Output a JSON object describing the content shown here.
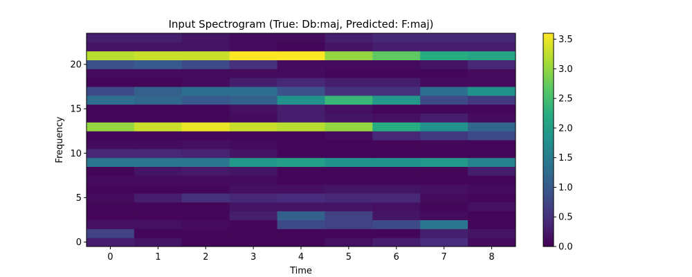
{
  "chart_data": {
    "type": "heatmap",
    "title": "Input Spectrogram (True: Db:maj, Predicted: F:maj)",
    "xlabel": "Time",
    "ylabel": "Frequency",
    "x": [
      0,
      1,
      2,
      3,
      4,
      5,
      6,
      7,
      8
    ],
    "y": [
      0,
      1,
      2,
      3,
      4,
      5,
      6,
      7,
      8,
      9,
      10,
      11,
      12,
      13,
      14,
      15,
      16,
      17,
      18,
      19,
      20,
      21,
      22,
      23
    ],
    "xticks": [
      "0",
      "1",
      "2",
      "3",
      "4",
      "5",
      "6",
      "7",
      "8"
    ],
    "yticks": [
      "0",
      "5",
      "10",
      "15",
      "20"
    ],
    "ytick_values": [
      0,
      5,
      10,
      15,
      20
    ],
    "colormap": "viridis",
    "vmin": 0,
    "vmax": 3.6,
    "colorbar_ticks": [
      "0.0",
      "0.5",
      "1.0",
      "1.5",
      "2.0",
      "2.5",
      "3.0",
      "3.5"
    ],
    "colorbar_tick_values": [
      0,
      0.5,
      1.0,
      1.5,
      2.0,
      2.5,
      3.0,
      3.5
    ],
    "z": [
      [
        0.3,
        0.2,
        0.05,
        0.05,
        0.05,
        0.15,
        0.3,
        0.45,
        0.1
      ],
      [
        0.7,
        0.05,
        0.05,
        0.05,
        0.05,
        0.05,
        0.05,
        0.3,
        0.2
      ],
      [
        0.15,
        0.15,
        0.1,
        0.05,
        0.8,
        0.7,
        0.8,
        1.4,
        0.05
      ],
      [
        0.05,
        0.05,
        0.05,
        0.3,
        1.1,
        0.7,
        0.2,
        0.1,
        0.05
      ],
      [
        0.05,
        0.05,
        0.05,
        0.2,
        0.2,
        0.2,
        0.15,
        0.05,
        0.15
      ],
      [
        0.1,
        0.3,
        0.5,
        0.4,
        0.45,
        0.4,
        0.4,
        0.1,
        0.05
      ],
      [
        0.05,
        0.05,
        0.05,
        0.15,
        0.15,
        0.2,
        0.2,
        0.15,
        0.1
      ],
      [
        0.1,
        0.1,
        0.1,
        0.1,
        0.05,
        0.05,
        0.05,
        0.05,
        0.05
      ],
      [
        0.05,
        0.2,
        0.25,
        0.2,
        0.05,
        0.05,
        0.05,
        0.05,
        0.3
      ],
      [
        1.4,
        1.4,
        1.4,
        1.9,
        2.0,
        1.8,
        1.8,
        1.9,
        1.6
      ],
      [
        0.4,
        0.4,
        0.35,
        0.2,
        0.05,
        0.05,
        0.05,
        0.05,
        0.05
      ],
      [
        0.1,
        0.1,
        0.15,
        0.1,
        0.05,
        0.05,
        0.05,
        0.05,
        0.05
      ],
      [
        0.05,
        0.05,
        0.05,
        0.05,
        0.05,
        0.1,
        0.4,
        0.6,
        0.8
      ],
      [
        3.0,
        3.3,
        3.5,
        3.3,
        3.2,
        3.0,
        2.2,
        1.8,
        1.2
      ],
      [
        0.05,
        0.05,
        0.05,
        0.1,
        0.3,
        0.2,
        0.15,
        0.3,
        0.1
      ],
      [
        0.05,
        0.05,
        0.05,
        0.15,
        0.3,
        0.15,
        0.05,
        0.05,
        0.05
      ],
      [
        1.3,
        1.2,
        1.0,
        1.1,
        1.8,
        2.4,
        1.9,
        0.8,
        0.6
      ],
      [
        0.8,
        1.1,
        1.3,
        1.3,
        0.9,
        0.5,
        0.5,
        1.3,
        1.8
      ],
      [
        0.05,
        0.05,
        0.1,
        0.3,
        0.4,
        0.3,
        0.3,
        0.1,
        0.1
      ],
      [
        0.1,
        0.1,
        0.1,
        0.1,
        0.1,
        0.05,
        0.05,
        0.05,
        0.1
      ],
      [
        0.9,
        1.0,
        0.8,
        0.5,
        0.1,
        0.1,
        0.1,
        0.2,
        0.4
      ],
      [
        3.2,
        3.3,
        3.3,
        3.6,
        3.6,
        3.0,
        2.7,
        2.2,
        2.1
      ],
      [
        0.2,
        0.2,
        0.2,
        0.1,
        0.05,
        0.2,
        0.3,
        0.3,
        0.3
      ],
      [
        0.3,
        0.3,
        0.2,
        0.1,
        0.1,
        0.3,
        0.4,
        0.4,
        0.4
      ]
    ]
  }
}
